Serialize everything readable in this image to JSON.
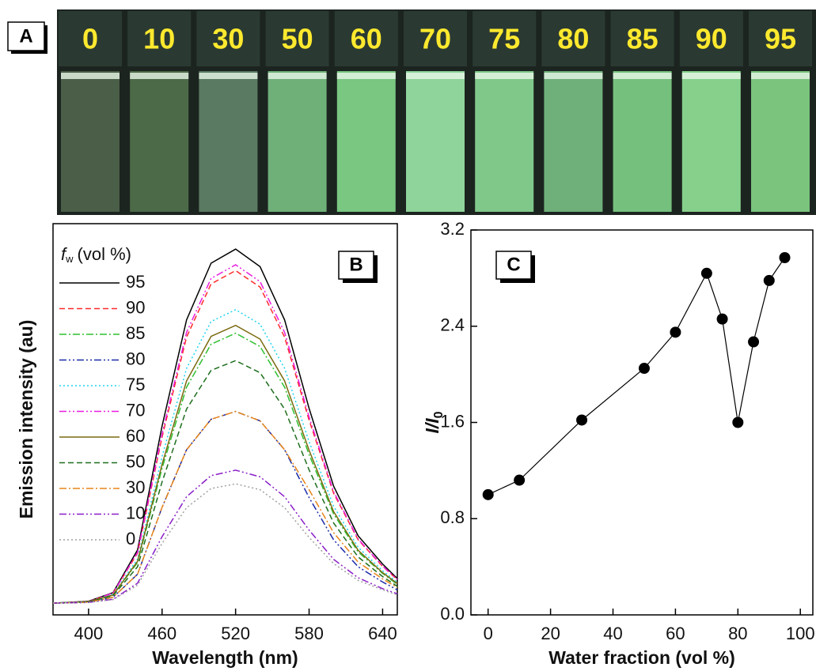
{
  "photo": {
    "label": "A",
    "vials": [
      "0",
      "10",
      "30",
      "50",
      "60",
      "70",
      "75",
      "80",
      "85",
      "90",
      "95"
    ]
  },
  "chart_data": [
    {
      "type": "line",
      "panel_label": "B",
      "xlabel": "Wavelength (nm)",
      "ylabel": "Emission intensity (au)",
      "legend": "upper left",
      "legend_title": {
        "main": "f",
        "sub": "w",
        "rest": "(vol %)"
      },
      "x": [
        371,
        400,
        420,
        440,
        460,
        480,
        500,
        520,
        540,
        560,
        580,
        600,
        620,
        640,
        652
      ],
      "xlim": [
        371,
        652
      ],
      "xticks": [
        400,
        460,
        520,
        580,
        640
      ],
      "ylim": [
        0,
        100
      ],
      "series": [
        {
          "name": "95",
          "color": "#000000",
          "dash": "solid",
          "values": [
            3,
            3.5,
            5.7,
            16.6,
            48.3,
            75.4,
            89.9,
            93.5,
            89.0,
            75.4,
            52.8,
            32.9,
            20.2,
            13.0,
            9.3
          ]
        },
        {
          "name": "90",
          "color": "#ff2a2a",
          "dash": "dash",
          "values": [
            3,
            3.4,
            5.6,
            15.8,
            45.5,
            71,
            84.6,
            88,
            83.8,
            71,
            49.8,
            31.1,
            19.2,
            12.4,
            9.0
          ]
        },
        {
          "name": "85",
          "color": "#2fbf2f",
          "dash": "dashdot",
          "values": [
            3,
            3.3,
            5.1,
            13.4,
            37.5,
            58.2,
            69.2,
            72,
            68.6,
            58.2,
            41,
            25.8,
            16.1,
            10.6,
            7.8
          ]
        },
        {
          "name": "80",
          "color": "#1a2aa8",
          "dash": "dashdotdot",
          "values": [
            3,
            3.2,
            4.5,
            10.4,
            27.5,
            42.2,
            50,
            52,
            49.6,
            42.2,
            30,
            19.2,
            12.3,
            8.4,
            6.4
          ]
        },
        {
          "name": "75",
          "color": "#22d4f0",
          "dash": "dot",
          "values": [
            3,
            3.4,
            5.3,
            14.3,
            40.5,
            63,
            75,
            78,
            74.3,
            63,
            44.3,
            27.8,
            17.3,
            11.3,
            8.3
          ]
        },
        {
          "name": "70",
          "color": "#e81ee0",
          "dash": "dashdotdot",
          "values": [
            3,
            3.4,
            5.6,
            16,
            46.3,
            72.2,
            86,
            89.5,
            85.2,
            72.2,
            50.6,
            31.5,
            19.4,
            12.5,
            9.1
          ]
        },
        {
          "name": "60",
          "color": "#7a6a10",
          "dash": "solid",
          "values": [
            3,
            3.4,
            5.1,
            13.7,
            38.5,
            59.8,
            71.2,
            74,
            70.5,
            59.8,
            42.1,
            26.4,
            16.5,
            10.8,
            8
          ]
        },
        {
          "name": "50",
          "color": "#1e6e1e",
          "dash": "dash",
          "values": [
            3,
            3.3,
            4.9,
            12.3,
            34,
            52.6,
            62.5,
            65,
            61.9,
            52.6,
            37.1,
            23.5,
            14.8,
            9.8,
            7.3
          ]
        },
        {
          "name": "30",
          "color": "#e8861a",
          "dash": "dashdot",
          "values": [
            3,
            3.2,
            4.5,
            10.4,
            27.5,
            42.2,
            50,
            52,
            49.6,
            42.2,
            32,
            21,
            13.5,
            9.2,
            7
          ]
        },
        {
          "name": "10",
          "color": "#8a1ec8",
          "dash": "dashdotdot",
          "values": [
            3,
            3.2,
            4,
            8.1,
            20,
            30.2,
            35.6,
            37,
            35.3,
            30.2,
            21.7,
            14.2,
            9.5,
            6.7,
            5.4
          ]
        },
        {
          "name": "0",
          "color": "#a0a0a0",
          "dash": "dot",
          "values": [
            3,
            3.2,
            3.9,
            7.6,
            18.3,
            27.4,
            32.3,
            33.5,
            32,
            27.4,
            19.8,
            13.1,
            8.8,
            6.4,
            5.1
          ]
        }
      ]
    },
    {
      "type": "line",
      "panel_label": "C",
      "xlabel": "Water fraction (vol %)",
      "ylabel": {
        "main": "I/I",
        "sub": "0"
      },
      "marker": "circle",
      "color": "#000000",
      "x": [
        0,
        10,
        30,
        50,
        60,
        70,
        75,
        80,
        85,
        90,
        95
      ],
      "values": [
        1.0,
        1.12,
        1.62,
        2.05,
        2.35,
        2.84,
        2.46,
        1.6,
        2.27,
        2.78,
        2.97
      ],
      "xlim": [
        -5.5,
        104
      ],
      "xticks": [
        0,
        20,
        40,
        60,
        80,
        100
      ],
      "ylim": [
        0,
        3.2
      ],
      "yticks": [
        {
          "value": 0,
          "label": "0.0"
        },
        0.8,
        1.6,
        2.4,
        3.2
      ]
    }
  ]
}
